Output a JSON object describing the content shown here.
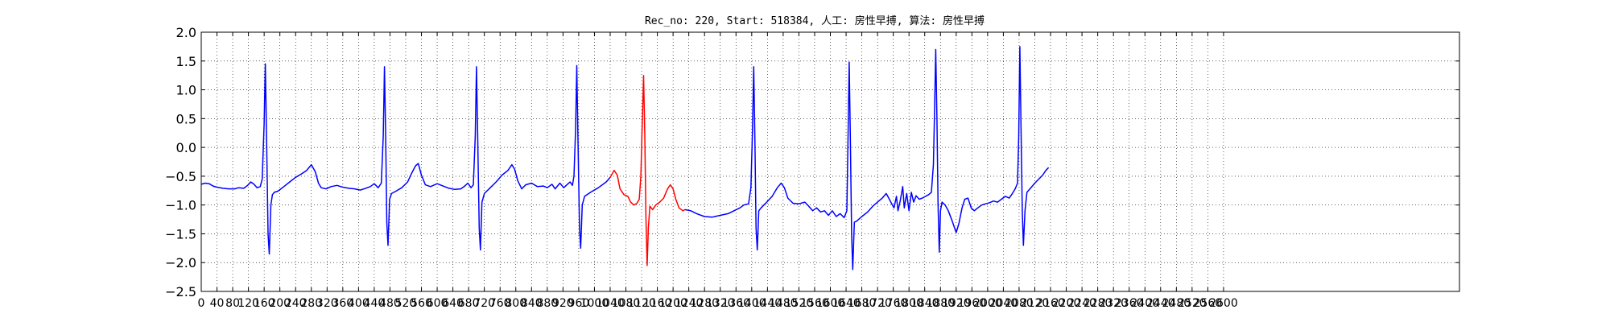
{
  "chart_data": {
    "type": "line",
    "title": "Rec_no: 220, Start: 518384, 人工: 房性早搏, 算法: 房性早搏",
    "xlabel": "",
    "ylabel": "",
    "xlim": [
      0,
      3200
    ],
    "ylim": [
      -2.5,
      2.0
    ],
    "grid": true,
    "y_ticks": [
      "2.0",
      "1.5",
      "1.0",
      "0.5",
      "0.0",
      "−0.5",
      "−1.0",
      "−1.5",
      "−2.0",
      "−2.5"
    ],
    "y_tick_values": [
      2.0,
      1.5,
      1.0,
      0.5,
      0.0,
      -0.5,
      -1.0,
      -1.5,
      -2.0,
      -2.5
    ],
    "x_ticks": [
      "0",
      "40",
      "80",
      "120",
      "160",
      "200",
      "240",
      "280",
      "320",
      "360",
      "400",
      "440",
      "480",
      "520",
      "560",
      "600",
      "640",
      "680",
      "720",
      "760",
      "800",
      "840",
      "880",
      "920",
      "960",
      "1000",
      "1040",
      "1080",
      "1120",
      "1160",
      "1200",
      "1240",
      "1280",
      "1320",
      "1360",
      "1400",
      "1440",
      "1480",
      "1520",
      "1560",
      "1600",
      "1640",
      "1680",
      "1720",
      "1760",
      "1800",
      "1840",
      "1880",
      "1920",
      "1960",
      "2000",
      "2040",
      "2080",
      "2120",
      "2160",
      "2200",
      "2240",
      "2280",
      "2320",
      "2360",
      "2400",
      "2440",
      "2480",
      "2520",
      "2560",
      "2600"
    ],
    "x_tick_values": [
      0,
      40,
      80,
      120,
      160,
      200,
      240,
      280,
      320,
      360,
      400,
      440,
      480,
      520,
      560,
      600,
      640,
      680,
      720,
      760,
      800,
      840,
      880,
      920,
      960,
      1000,
      1040,
      1080,
      1120,
      1160,
      1200,
      1240,
      1280,
      1320,
      1360,
      1400,
      1440,
      1480,
      1520,
      1560,
      1600,
      1640,
      1680,
      1720,
      1760,
      1800,
      1840,
      1880,
      1920,
      1960,
      2000,
      2040,
      2080,
      2120,
      2160,
      2200,
      2240,
      2280,
      2320,
      2360,
      2400,
      2440,
      2480,
      2520,
      2560,
      2600
    ],
    "series": [
      {
        "color": "#0000ff",
        "points": [
          [
            0,
            -0.64
          ],
          [
            10,
            -0.62
          ],
          [
            20,
            -0.63
          ],
          [
            30,
            -0.67
          ],
          [
            40,
            -0.69
          ],
          [
            55,
            -0.71
          ],
          [
            70,
            -0.72
          ],
          [
            85,
            -0.72
          ],
          [
            95,
            -0.7
          ],
          [
            108,
            -0.71
          ],
          [
            118,
            -0.66
          ],
          [
            126,
            -0.6
          ],
          [
            134,
            -0.64
          ],
          [
            142,
            -0.7
          ],
          [
            150,
            -0.68
          ],
          [
            155,
            -0.55
          ],
          [
            160,
            0.4
          ],
          [
            163,
            1.45
          ],
          [
            166,
            0.2
          ],
          [
            170,
            -1.5
          ],
          [
            173,
            -1.85
          ],
          [
            177,
            -1.0
          ],
          [
            181,
            -0.82
          ],
          [
            186,
            -0.78
          ],
          [
            195,
            -0.76
          ],
          [
            210,
            -0.68
          ],
          [
            225,
            -0.6
          ],
          [
            240,
            -0.52
          ],
          [
            255,
            -0.46
          ],
          [
            268,
            -0.4
          ],
          [
            280,
            -0.3
          ],
          [
            290,
            -0.42
          ],
          [
            298,
            -0.62
          ],
          [
            305,
            -0.7
          ],
          [
            318,
            -0.72
          ],
          [
            330,
            -0.68
          ],
          [
            345,
            -0.66
          ],
          [
            360,
            -0.69
          ],
          [
            375,
            -0.71
          ],
          [
            390,
            -0.72
          ],
          [
            405,
            -0.74
          ],
          [
            418,
            -0.71
          ],
          [
            430,
            -0.68
          ],
          [
            440,
            -0.63
          ],
          [
            450,
            -0.7
          ],
          [
            458,
            -0.62
          ],
          [
            463,
            0.2
          ],
          [
            466,
            1.4
          ],
          [
            469,
            0.2
          ],
          [
            472,
            -1.3
          ],
          [
            475,
            -1.7
          ],
          [
            479,
            -0.9
          ],
          [
            484,
            -0.8
          ],
          [
            495,
            -0.76
          ],
          [
            510,
            -0.7
          ],
          [
            525,
            -0.6
          ],
          [
            535,
            -0.45
          ],
          [
            545,
            -0.32
          ],
          [
            552,
            -0.28
          ],
          [
            560,
            -0.48
          ],
          [
            570,
            -0.65
          ],
          [
            583,
            -0.68
          ],
          [
            600,
            -0.63
          ],
          [
            615,
            -0.67
          ],
          [
            630,
            -0.71
          ],
          [
            645,
            -0.73
          ],
          [
            660,
            -0.72
          ],
          [
            670,
            -0.67
          ],
          [
            678,
            -0.62
          ],
          [
            686,
            -0.7
          ],
          [
            692,
            -0.65
          ],
          [
            697,
            0.2
          ],
          [
            700,
            1.4
          ],
          [
            703,
            0.2
          ],
          [
            707,
            -1.4
          ],
          [
            710,
            -1.78
          ],
          [
            714,
            -0.95
          ],
          [
            720,
            -0.8
          ],
          [
            735,
            -0.7
          ],
          [
            750,
            -0.6
          ],
          [
            765,
            -0.48
          ],
          [
            780,
            -0.4
          ],
          [
            790,
            -0.3
          ],
          [
            797,
            -0.38
          ],
          [
            805,
            -0.58
          ],
          [
            815,
            -0.72
          ],
          [
            825,
            -0.65
          ],
          [
            840,
            -0.62
          ],
          [
            855,
            -0.68
          ],
          [
            870,
            -0.67
          ],
          [
            880,
            -0.7
          ],
          [
            892,
            -0.64
          ],
          [
            900,
            -0.72
          ],
          [
            912,
            -0.62
          ],
          [
            922,
            -0.7
          ],
          [
            930,
            -0.65
          ],
          [
            938,
            -0.6
          ],
          [
            944,
            -0.66
          ],
          [
            948,
            -0.5
          ],
          [
            952,
            0.3
          ],
          [
            955,
            1.42
          ],
          [
            958,
            0.2
          ],
          [
            962,
            -1.4
          ],
          [
            965,
            -1.75
          ],
          [
            969,
            -1.0
          ],
          [
            975,
            -0.85
          ],
          [
            990,
            -0.78
          ],
          [
            1010,
            -0.7
          ],
          [
            1030,
            -0.6
          ],
          [
            1040,
            -0.52
          ]
        ]
      },
      {
        "color": "#ff0000",
        "points": [
          [
            1040,
            -0.52
          ],
          [
            1050,
            -0.4
          ],
          [
            1058,
            -0.48
          ],
          [
            1065,
            -0.72
          ],
          [
            1075,
            -0.82
          ],
          [
            1085,
            -0.85
          ],
          [
            1092,
            -0.95
          ],
          [
            1100,
            -1.0
          ],
          [
            1108,
            -0.97
          ],
          [
            1114,
            -0.9
          ],
          [
            1118,
            -0.5
          ],
          [
            1122,
            0.5
          ],
          [
            1125,
            1.25
          ],
          [
            1128,
            0.2
          ],
          [
            1131,
            -1.2
          ],
          [
            1134,
            -2.05
          ],
          [
            1137,
            -1.4
          ],
          [
            1141,
            -1.02
          ],
          [
            1148,
            -1.08
          ],
          [
            1156,
            -1.0
          ],
          [
            1166,
            -0.95
          ],
          [
            1176,
            -0.88
          ],
          [
            1186,
            -0.72
          ],
          [
            1193,
            -0.65
          ],
          [
            1200,
            -0.72
          ],
          [
            1207,
            -0.9
          ],
          [
            1215,
            -1.05
          ],
          [
            1225,
            -1.1
          ],
          [
            1230,
            -1.08
          ]
        ]
      },
      {
        "color": "#0000ff",
        "points": [
          [
            1230,
            -1.08
          ],
          [
            1245,
            -1.1
          ],
          [
            1260,
            -1.15
          ],
          [
            1280,
            -1.2
          ],
          [
            1300,
            -1.21
          ],
          [
            1320,
            -1.18
          ],
          [
            1340,
            -1.15
          ],
          [
            1355,
            -1.1
          ],
          [
            1370,
            -1.05
          ],
          [
            1380,
            -1.0
          ],
          [
            1392,
            -0.98
          ],
          [
            1398,
            -0.7
          ],
          [
            1402,
            0.3
          ],
          [
            1405,
            1.4
          ],
          [
            1408,
            0.2
          ],
          [
            1411,
            -1.4
          ],
          [
            1414,
            -1.78
          ],
          [
            1418,
            -1.1
          ],
          [
            1424,
            -1.05
          ],
          [
            1438,
            -0.95
          ],
          [
            1452,
            -0.85
          ],
          [
            1465,
            -0.7
          ],
          [
            1475,
            -0.62
          ],
          [
            1483,
            -0.7
          ],
          [
            1492,
            -0.88
          ],
          [
            1505,
            -0.97
          ],
          [
            1520,
            -0.98
          ],
          [
            1535,
            -0.95
          ],
          [
            1545,
            -1.02
          ],
          [
            1555,
            -1.1
          ],
          [
            1565,
            -1.05
          ],
          [
            1575,
            -1.12
          ],
          [
            1585,
            -1.1
          ],
          [
            1595,
            -1.18
          ],
          [
            1605,
            -1.1
          ],
          [
            1615,
            -1.2
          ],
          [
            1625,
            -1.15
          ],
          [
            1635,
            -1.22
          ],
          [
            1642,
            -1.1
          ],
          [
            1645,
            0.2
          ],
          [
            1648,
            1.48
          ],
          [
            1651,
            0.1
          ],
          [
            1654,
            -1.5
          ],
          [
            1657,
            -2.12
          ],
          [
            1661,
            -1.3
          ],
          [
            1667,
            -1.28
          ],
          [
            1680,
            -1.2
          ],
          [
            1695,
            -1.12
          ],
          [
            1708,
            -1.02
          ],
          [
            1720,
            -0.95
          ],
          [
            1732,
            -0.88
          ],
          [
            1742,
            -0.8
          ],
          [
            1750,
            -0.9
          ],
          [
            1756,
            -0.98
          ],
          [
            1762,
            -1.05
          ],
          [
            1768,
            -0.85
          ],
          [
            1772,
            -1.1
          ],
          [
            1778,
            -0.92
          ],
          [
            1784,
            -0.68
          ],
          [
            1788,
            -1.05
          ],
          [
            1794,
            -0.8
          ],
          [
            1800,
            -1.1
          ],
          [
            1806,
            -0.78
          ],
          [
            1812,
            -0.95
          ],
          [
            1818,
            -0.84
          ],
          [
            1826,
            -0.9
          ],
          [
            1834,
            -0.88
          ],
          [
            1842,
            -0.85
          ],
          [
            1850,
            -0.82
          ],
          [
            1857,
            -0.78
          ],
          [
            1862,
            -0.3
          ],
          [
            1865,
            0.6
          ],
          [
            1868,
            1.7
          ],
          [
            1871,
            0.5
          ],
          [
            1874,
            -1.0
          ],
          [
            1877,
            -1.82
          ],
          [
            1880,
            -1.1
          ],
          [
            1884,
            -0.95
          ],
          [
            1892,
            -1.0
          ],
          [
            1900,
            -1.1
          ],
          [
            1910,
            -1.28
          ],
          [
            1920,
            -1.48
          ],
          [
            1927,
            -1.32
          ],
          [
            1935,
            -1.05
          ],
          [
            1942,
            -0.9
          ],
          [
            1950,
            -0.88
          ],
          [
            1958,
            -1.05
          ],
          [
            1966,
            -1.1
          ],
          [
            1975,
            -1.05
          ],
          [
            1985,
            -1.0
          ],
          [
            1995,
            -0.98
          ],
          [
            2005,
            -0.96
          ],
          [
            2015,
            -0.93
          ],
          [
            2025,
            -0.95
          ],
          [
            2035,
            -0.9
          ],
          [
            2045,
            -0.85
          ],
          [
            2055,
            -0.88
          ],
          [
            2063,
            -0.8
          ],
          [
            2070,
            -0.72
          ],
          [
            2076,
            -0.62
          ],
          [
            2079,
            0.2
          ],
          [
            2082,
            1.75
          ],
          [
            2085,
            0.3
          ],
          [
            2088,
            -1.1
          ],
          [
            2091,
            -1.7
          ],
          [
            2095,
            -1.1
          ],
          [
            2100,
            -0.78
          ],
          [
            2110,
            -0.7
          ],
          [
            2120,
            -0.62
          ],
          [
            2130,
            -0.55
          ],
          [
            2140,
            -0.48
          ],
          [
            2148,
            -0.4
          ],
          [
            2155,
            -0.35
          ]
        ]
      }
    ]
  }
}
